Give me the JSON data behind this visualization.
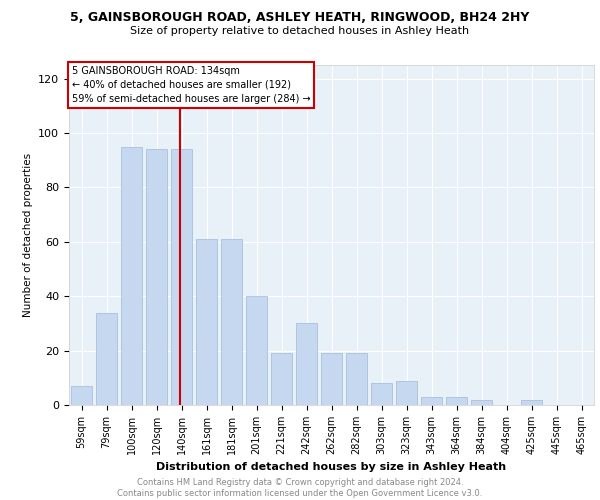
{
  "title_line1": "5, GAINSBOROUGH ROAD, ASHLEY HEATH, RINGWOOD, BH24 2HY",
  "title_line2": "Size of property relative to detached houses in Ashley Heath",
  "xlabel": "Distribution of detached houses by size in Ashley Heath",
  "ylabel": "Number of detached properties",
  "categories": [
    "59sqm",
    "79sqm",
    "100sqm",
    "120sqm",
    "140sqm",
    "161sqm",
    "181sqm",
    "201sqm",
    "221sqm",
    "242sqm",
    "262sqm",
    "282sqm",
    "303sqm",
    "323sqm",
    "343sqm",
    "364sqm",
    "384sqm",
    "404sqm",
    "425sqm",
    "445sqm",
    "465sqm"
  ],
  "values": [
    7,
    34,
    95,
    94,
    94,
    61,
    61,
    40,
    19,
    30,
    19,
    19,
    8,
    9,
    3,
    3,
    2,
    0,
    2,
    0,
    0
  ],
  "bar_color": "#c5d8f0",
  "bar_edge_color": "#a0b8d8",
  "vline_color": "#cc0000",
  "annotation_line1": "5 GAINSBOROUGH ROAD: 134sqm",
  "annotation_line2": "← 40% of detached houses are smaller (192)",
  "annotation_line3": "59% of semi-detached houses are larger (284) →",
  "ylim": [
    0,
    125
  ],
  "yticks": [
    0,
    20,
    40,
    60,
    80,
    100,
    120
  ],
  "background_color": "#e8f0f8",
  "footer_line1": "Contains HM Land Registry data © Crown copyright and database right 2024.",
  "footer_line2": "Contains public sector information licensed under the Open Government Licence v3.0."
}
